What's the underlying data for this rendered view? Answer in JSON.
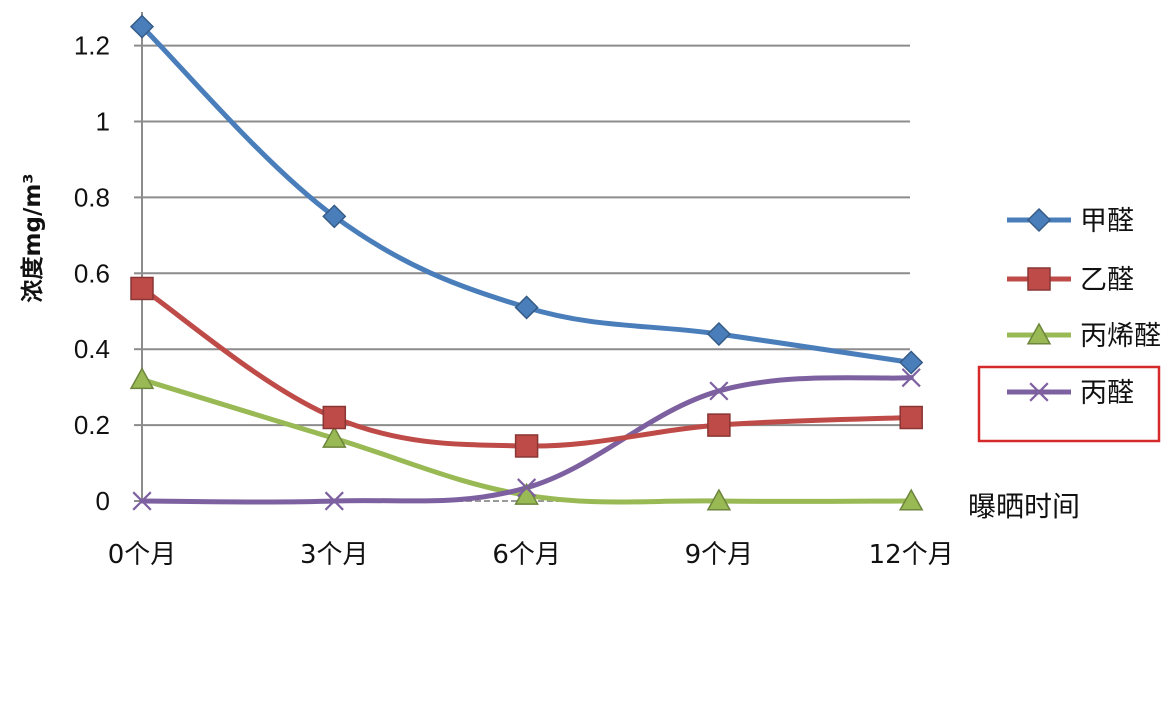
{
  "chart_data": {
    "type": "line",
    "title": "",
    "ylabel": "浓度mg/m³",
    "xlabel": "曝晒时间",
    "categories": [
      "0个月",
      "3个月",
      "6个月",
      "9个月",
      "12个月"
    ],
    "ylim": [
      0,
      1.25
    ],
    "yticks": [
      "0",
      "0.2",
      "0.4",
      "0.6",
      "0.8",
      "1",
      "1.2"
    ],
    "grid": true,
    "legend_position": "right",
    "series": [
      {
        "name": "甲醛",
        "values": [
          1.25,
          0.75,
          0.51,
          0.44,
          0.365
        ],
        "color": "#4a7ebb",
        "marker": "diamond"
      },
      {
        "name": "乙醛",
        "values": [
          0.56,
          0.22,
          0.145,
          0.2,
          0.22
        ],
        "color": "#be4b48",
        "marker": "square"
      },
      {
        "name": "丙烯醛",
        "values": [
          0.32,
          0.165,
          0.015,
          0.0,
          0.0
        ],
        "color": "#98b954",
        "marker": "triangle"
      },
      {
        "name": "丙醛",
        "values": [
          0.0,
          0.0,
          0.035,
          0.29,
          0.325
        ],
        "color": "#7d60a0",
        "marker": "x"
      }
    ],
    "highlight": {
      "series": "丙醛",
      "color": "#d62a2a"
    }
  }
}
